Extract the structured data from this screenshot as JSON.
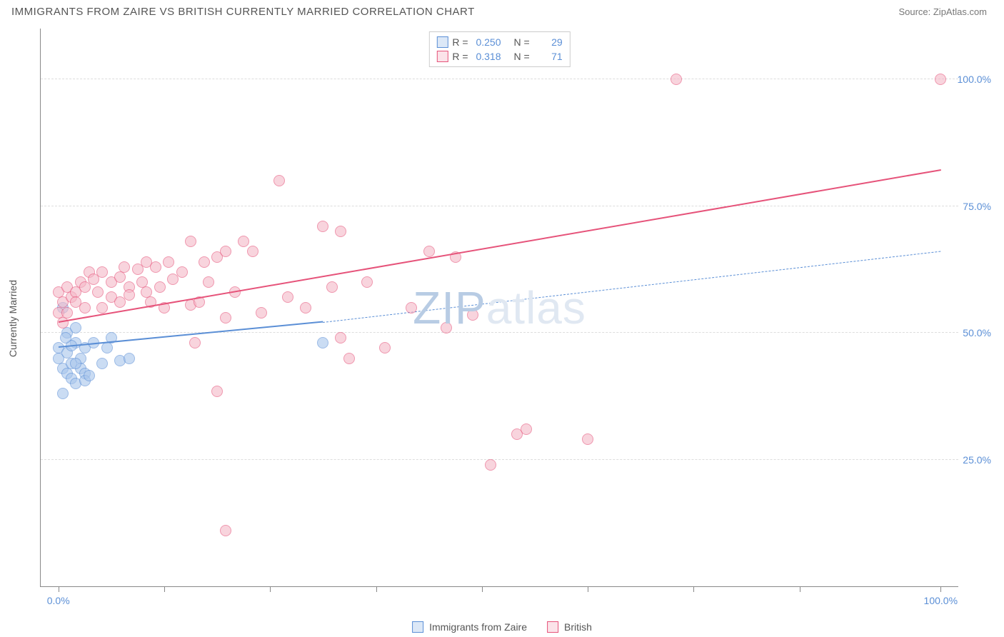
{
  "header": {
    "title": "IMMIGRANTS FROM ZAIRE VS BRITISH CURRENTLY MARRIED CORRELATION CHART",
    "source": "Source: ZipAtlas.com"
  },
  "chart": {
    "type": "scatter",
    "ylabel": "Currently Married",
    "xlim": [
      -2,
      102
    ],
    "ylim": [
      0,
      110
    ],
    "xtick_positions": [
      0,
      12,
      24,
      36,
      48,
      60,
      72,
      84,
      100
    ],
    "xtick_labels_shown": {
      "0": "0.0%",
      "100": "100.0%"
    },
    "ytick_positions": [
      25,
      50,
      75,
      100
    ],
    "ytick_labels": [
      "25.0%",
      "50.0%",
      "75.0%",
      "100.0%"
    ],
    "grid_color": "#dddddd",
    "axis_color": "#888888",
    "label_color": "#5b8fd6",
    "background_color": "#ffffff",
    "marker_radius": 8,
    "marker_fill_opacity": 0.25,
    "marker_stroke_width": 1.5,
    "watermark": {
      "text_before": "ZIP",
      "text_after": "atlas",
      "color_strong": "#b8cce4",
      "color_light": "#e0e8f2"
    },
    "series": [
      {
        "id": "zaire",
        "label": "Immigrants from Zaire",
        "color_stroke": "#5b8fd6",
        "color_fill": "#a8c5ec",
        "R": "0.250",
        "N": "29",
        "trend": {
          "x1": 0,
          "y1": 47,
          "x2": 30,
          "y2": 52,
          "dashed_extend": {
            "x2": 100,
            "y2": 66
          }
        },
        "points": [
          [
            0,
            45
          ],
          [
            0,
            47
          ],
          [
            0.5,
            43
          ],
          [
            1,
            42
          ],
          [
            1,
            46
          ],
          [
            1.5,
            44
          ],
          [
            1.5,
            41
          ],
          [
            2,
            40
          ],
          [
            2,
            48
          ],
          [
            2.5,
            45
          ],
          [
            2.5,
            43
          ],
          [
            3,
            42
          ],
          [
            3,
            40.5
          ],
          [
            3,
            47
          ],
          [
            1,
            50
          ],
          [
            2,
            51
          ],
          [
            0.5,
            38
          ],
          [
            4,
            48
          ],
          [
            5,
            44
          ],
          [
            5.5,
            47
          ],
          [
            6,
            49
          ],
          [
            7,
            44.5
          ],
          [
            0.5,
            55
          ],
          [
            1.5,
            47.5
          ],
          [
            2,
            44
          ],
          [
            3.5,
            41.5
          ],
          [
            0.8,
            49
          ],
          [
            30,
            48
          ],
          [
            8,
            45
          ]
        ]
      },
      {
        "id": "british",
        "label": "British",
        "color_stroke": "#e6537a",
        "color_fill": "#f5b8c8",
        "R": "0.318",
        "N": "71",
        "trend": {
          "x1": 0,
          "y1": 52,
          "x2": 100,
          "y2": 82
        },
        "points": [
          [
            0,
            58
          ],
          [
            0,
            54
          ],
          [
            0.5,
            56
          ],
          [
            0.5,
            52
          ],
          [
            1,
            54
          ],
          [
            1,
            59
          ],
          [
            1.5,
            57
          ],
          [
            2,
            58
          ],
          [
            2,
            56
          ],
          [
            2.5,
            60
          ],
          [
            3,
            59
          ],
          [
            3,
            55
          ],
          [
            3.5,
            62
          ],
          [
            4,
            60.5
          ],
          [
            4.5,
            58
          ],
          [
            5,
            55
          ],
          [
            5,
            62
          ],
          [
            6,
            57
          ],
          [
            6,
            60
          ],
          [
            7,
            61
          ],
          [
            7,
            56
          ],
          [
            7.5,
            63
          ],
          [
            8,
            59
          ],
          [
            8,
            57.5
          ],
          [
            9,
            62.5
          ],
          [
            9.5,
            60
          ],
          [
            10,
            64
          ],
          [
            10,
            58
          ],
          [
            10.5,
            56
          ],
          [
            11,
            63
          ],
          [
            11.5,
            59
          ],
          [
            12,
            55
          ],
          [
            12.5,
            64
          ],
          [
            13,
            60.5
          ],
          [
            14,
            62
          ],
          [
            15,
            55.5
          ],
          [
            15,
            68
          ],
          [
            15.5,
            48
          ],
          [
            16,
            56
          ],
          [
            16.5,
            64
          ],
          [
            17,
            60
          ],
          [
            18,
            65
          ],
          [
            19,
            66
          ],
          [
            19,
            53
          ],
          [
            20,
            58
          ],
          [
            21,
            68
          ],
          [
            22,
            66
          ],
          [
            23,
            54
          ],
          [
            25,
            80
          ],
          [
            26,
            57
          ],
          [
            28,
            55
          ],
          [
            30,
            71
          ],
          [
            31,
            59
          ],
          [
            32,
            70
          ],
          [
            32,
            49
          ],
          [
            33,
            45
          ],
          [
            35,
            60
          ],
          [
            37,
            47
          ],
          [
            40,
            55
          ],
          [
            42,
            66
          ],
          [
            44,
            51
          ],
          [
            45,
            65
          ],
          [
            47,
            53.5
          ],
          [
            52,
            30
          ],
          [
            53,
            31
          ],
          [
            49,
            24
          ],
          [
            60,
            29
          ],
          [
            18,
            38.5
          ],
          [
            19,
            11
          ],
          [
            70,
            100
          ],
          [
            100,
            100
          ]
        ]
      }
    ],
    "footer_legend": [
      {
        "label": "Immigrants from Zaire",
        "stroke": "#5b8fd6",
        "fill": "#a8c5ec"
      },
      {
        "label": "British",
        "stroke": "#e6537a",
        "fill": "#f5b8c8"
      }
    ]
  }
}
